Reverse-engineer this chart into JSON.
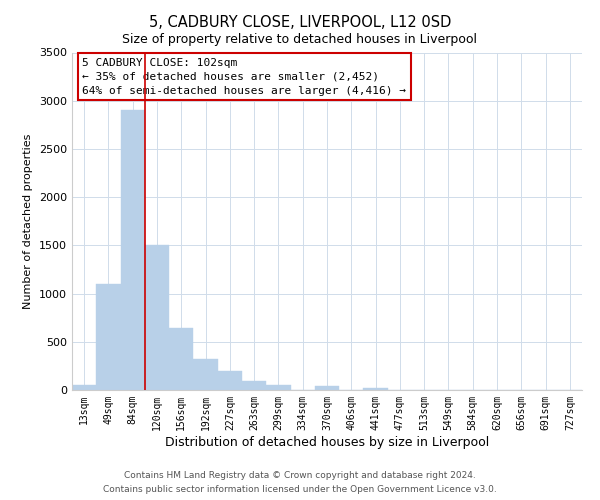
{
  "title": "5, CADBURY CLOSE, LIVERPOOL, L12 0SD",
  "subtitle": "Size of property relative to detached houses in Liverpool",
  "xlabel": "Distribution of detached houses by size in Liverpool",
  "ylabel": "Number of detached properties",
  "bar_labels": [
    "13sqm",
    "49sqm",
    "84sqm",
    "120sqm",
    "156sqm",
    "192sqm",
    "227sqm",
    "263sqm",
    "299sqm",
    "334sqm",
    "370sqm",
    "406sqm",
    "441sqm",
    "477sqm",
    "513sqm",
    "549sqm",
    "584sqm",
    "620sqm",
    "656sqm",
    "691sqm",
    "727sqm"
  ],
  "bar_values": [
    50,
    1100,
    2900,
    1500,
    640,
    320,
    195,
    95,
    50,
    0,
    40,
    0,
    20,
    0,
    0,
    0,
    0,
    0,
    0,
    0,
    0
  ],
  "bar_color": "#b8d0e8",
  "bar_edge_color": "#a0c0de",
  "vline_index": 2.5,
  "vline_color": "#cc0000",
  "ylim": [
    0,
    3500
  ],
  "yticks": [
    0,
    500,
    1000,
    1500,
    2000,
    2500,
    3000,
    3500
  ],
  "annotation_title": "5 CADBURY CLOSE: 102sqm",
  "annotation_line1": "← 35% of detached houses are smaller (2,452)",
  "annotation_line2": "64% of semi-detached houses are larger (4,416) →",
  "annotation_box_facecolor": "#ffffff",
  "annotation_box_edgecolor": "#cc0000",
  "footer1": "Contains HM Land Registry data © Crown copyright and database right 2024.",
  "footer2": "Contains public sector information licensed under the Open Government Licence v3.0.",
  "title_fontsize": 10.5,
  "subtitle_fontsize": 9,
  "xlabel_fontsize": 9,
  "ylabel_fontsize": 8,
  "tick_fontsize": 7,
  "annotation_fontsize": 8,
  "footer_fontsize": 6.5,
  "grid_color": "#d0dcea",
  "figsize": [
    6.0,
    5.0
  ],
  "dpi": 100
}
